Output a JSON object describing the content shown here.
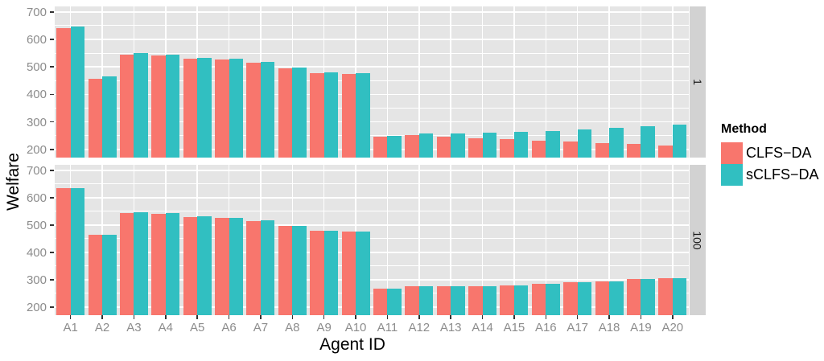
{
  "figure": {
    "ylabel": "Welfare",
    "xlabel": "Agent ID",
    "legend": {
      "title": "Method",
      "entries": [
        {
          "label": "CLFS−DA",
          "color": "#F8766D"
        },
        {
          "label": "sCLFS−DA",
          "color": "#31BFC1"
        }
      ]
    }
  },
  "chart_data": {
    "type": "bar",
    "bar_mode": "dodge",
    "title": "",
    "xlabel": "Agent ID",
    "ylabel": "Welfare",
    "legend_title": "Method",
    "legend_position": "right",
    "grid": true,
    "facet_labels": [
      "1",
      "100"
    ],
    "categories": [
      "A1",
      "A2",
      "A3",
      "A4",
      "A5",
      "A6",
      "A7",
      "A8",
      "A9",
      "A10",
      "A11",
      "A12",
      "A13",
      "A14",
      "A15",
      "A16",
      "A17",
      "A18",
      "A19",
      "A20"
    ],
    "facets": [
      {
        "label": "1",
        "series": [
          {
            "name": "CLFS−DA",
            "values": [
              642,
              456,
              545,
              543,
              531,
              527,
              514,
              495,
              477,
              474,
              246,
              251,
              247,
              241,
              236,
              232,
              229,
              224,
              221,
              215
            ]
          },
          {
            "name": "sCLFS−DA",
            "values": [
              647,
              465,
              550,
              545,
              534,
              530,
              517,
              498,
              479,
              476,
              250,
              258,
              257,
              261,
              263,
              268,
              272,
              277,
              283,
              289
            ]
          }
        ]
      },
      {
        "label": "100",
        "series": [
          {
            "name": "CLFS−DA",
            "values": [
              634,
              464,
              545,
              542,
              530,
              526,
              515,
              496,
              478,
              475,
              266,
              277,
              275,
              277,
              278,
              286,
              292,
              294,
              302,
              305
            ]
          },
          {
            "name": "sCLFS−DA",
            "values": [
              635,
              464,
              546,
              543,
              531,
              527,
              516,
              497,
              479,
              476,
              266,
              277,
              275,
              277,
              278,
              286,
              292,
              294,
              302,
              306
            ]
          }
        ]
      }
    ],
    "ylim": [
      170,
      720
    ],
    "yticks": [
      200,
      300,
      400,
      500,
      600,
      700
    ],
    "yticks_minor": [
      250,
      350,
      450,
      550,
      650
    ],
    "panel_bg": "#E5E5E5",
    "grid_color": "#FFFFFF",
    "strip_bg": "#D2D2D2",
    "axis_text_color": "#8C8C8C",
    "tick_color": "#333333"
  }
}
